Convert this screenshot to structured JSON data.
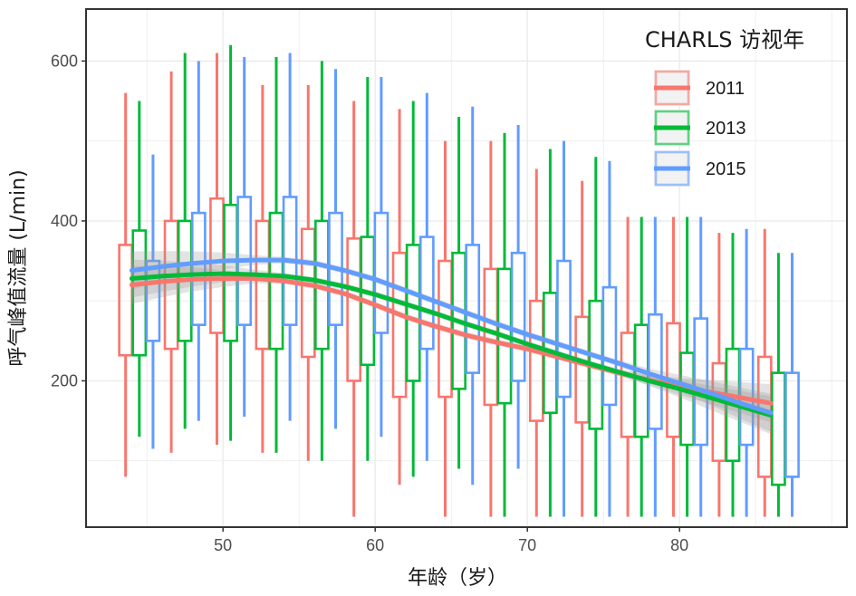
{
  "chart_data": {
    "type": "box",
    "x_ticks": [
      50,
      60,
      70,
      80
    ],
    "y_ticks": [
      200,
      400,
      600
    ],
    "xlim": [
      41,
      91
    ],
    "ylim": [
      17,
      665
    ],
    "xlabel": "年龄（岁）",
    "ylabel": "呼气峰值流量 (L/min)",
    "legend_title": "CHARLS 访视年",
    "legend_position": "top-right",
    "grid": true,
    "age_groups": [
      44.5,
      47.5,
      50.5,
      53.5,
      56.5,
      59.5,
      62.5,
      65.5,
      68.5,
      71.5,
      74.5,
      77.5,
      80.5,
      83.5,
      86.5
    ],
    "series": [
      {
        "name": "2011",
        "color": "#F8766D",
        "boxes": [
          {
            "whisker_low": 80,
            "q1": 232,
            "q3": 370,
            "whisker_high": 560
          },
          {
            "whisker_low": 110,
            "q1": 240,
            "q3": 400,
            "whisker_high": 587
          },
          {
            "whisker_low": 120,
            "q1": 260,
            "q3": 428,
            "whisker_high": 610
          },
          {
            "whisker_low": 110,
            "q1": 240,
            "q3": 400,
            "whisker_high": 570
          },
          {
            "whisker_low": 100,
            "q1": 230,
            "q3": 390,
            "whisker_high": 570
          },
          {
            "whisker_low": 30,
            "q1": 200,
            "q3": 378,
            "whisker_high": 550
          },
          {
            "whisker_low": 70,
            "q1": 180,
            "q3": 360,
            "whisker_high": 540
          },
          {
            "whisker_low": 30,
            "q1": 180,
            "q3": 350,
            "whisker_high": 500
          },
          {
            "whisker_low": 30,
            "q1": 170,
            "q3": 340,
            "whisker_high": 500
          },
          {
            "whisker_low": 30,
            "q1": 150,
            "q3": 300,
            "whisker_high": 465
          },
          {
            "whisker_low": 30,
            "q1": 148,
            "q3": 280,
            "whisker_high": 450
          },
          {
            "whisker_low": 30,
            "q1": 130,
            "q3": 260,
            "whisker_high": 405
          },
          {
            "whisker_low": 30,
            "q1": 130,
            "q3": 272,
            "whisker_high": 405
          },
          {
            "whisker_low": 30,
            "q1": 100,
            "q3": 222,
            "whisker_high": 385
          },
          {
            "whisker_low": 30,
            "q1": 80,
            "q3": 230,
            "whisker_high": 390
          }
        ],
        "trend": [
          {
            "age": 44,
            "pef": 320
          },
          {
            "age": 46,
            "pef": 324
          },
          {
            "age": 48,
            "pef": 327
          },
          {
            "age": 50,
            "pef": 328
          },
          {
            "age": 52,
            "pef": 328
          },
          {
            "age": 54,
            "pef": 325
          },
          {
            "age": 56,
            "pef": 319
          },
          {
            "age": 58,
            "pef": 309
          },
          {
            "age": 60,
            "pef": 295
          },
          {
            "age": 62,
            "pef": 280
          },
          {
            "age": 64,
            "pef": 268
          },
          {
            "age": 66,
            "pef": 257
          },
          {
            "age": 68,
            "pef": 248
          },
          {
            "age": 70,
            "pef": 240
          },
          {
            "age": 72,
            "pef": 230
          },
          {
            "age": 74,
            "pef": 220
          },
          {
            "age": 76,
            "pef": 210
          },
          {
            "age": 78,
            "pef": 201
          },
          {
            "age": 80,
            "pef": 193
          },
          {
            "age": 82,
            "pef": 186
          },
          {
            "age": 84,
            "pef": 179
          },
          {
            "age": 86,
            "pef": 172
          }
        ]
      },
      {
        "name": "2013",
        "color": "#00BA38",
        "boxes": [
          {
            "whisker_low": 130,
            "q1": 232,
            "q3": 388,
            "whisker_high": 550
          },
          {
            "whisker_low": 140,
            "q1": 250,
            "q3": 400,
            "whisker_high": 610
          },
          {
            "whisker_low": 125,
            "q1": 250,
            "q3": 420,
            "whisker_high": 620
          },
          {
            "whisker_low": 110,
            "q1": 240,
            "q3": 410,
            "whisker_high": 605
          },
          {
            "whisker_low": 100,
            "q1": 240,
            "q3": 400,
            "whisker_high": 600
          },
          {
            "whisker_low": 100,
            "q1": 220,
            "q3": 380,
            "whisker_high": 580
          },
          {
            "whisker_low": 80,
            "q1": 200,
            "q3": 370,
            "whisker_high": 550
          },
          {
            "whisker_low": 90,
            "q1": 190,
            "q3": 360,
            "whisker_high": 530
          },
          {
            "whisker_low": 30,
            "q1": 172,
            "q3": 340,
            "whisker_high": 510
          },
          {
            "whisker_low": 30,
            "q1": 160,
            "q3": 310,
            "whisker_high": 490
          },
          {
            "whisker_low": 30,
            "q1": 140,
            "q3": 300,
            "whisker_high": 480
          },
          {
            "whisker_low": 30,
            "q1": 130,
            "q3": 270,
            "whisker_high": 405
          },
          {
            "whisker_low": 30,
            "q1": 120,
            "q3": 235,
            "whisker_high": 405
          },
          {
            "whisker_low": 30,
            "q1": 100,
            "q3": 240,
            "whisker_high": 385
          },
          {
            "whisker_low": 30,
            "q1": 70,
            "q3": 210,
            "whisker_high": 360
          }
        ],
        "trend": [
          {
            "age": 44,
            "pef": 328
          },
          {
            "age": 46,
            "pef": 331
          },
          {
            "age": 48,
            "pef": 333
          },
          {
            "age": 50,
            "pef": 334
          },
          {
            "age": 52,
            "pef": 333
          },
          {
            "age": 54,
            "pef": 331
          },
          {
            "age": 56,
            "pef": 326
          },
          {
            "age": 58,
            "pef": 318
          },
          {
            "age": 60,
            "pef": 308
          },
          {
            "age": 62,
            "pef": 296
          },
          {
            "age": 64,
            "pef": 284
          },
          {
            "age": 66,
            "pef": 271
          },
          {
            "age": 68,
            "pef": 259
          },
          {
            "age": 70,
            "pef": 246
          },
          {
            "age": 72,
            "pef": 234
          },
          {
            "age": 74,
            "pef": 222
          },
          {
            "age": 76,
            "pef": 211
          },
          {
            "age": 78,
            "pef": 200
          },
          {
            "age": 80,
            "pef": 190
          },
          {
            "age": 82,
            "pef": 179
          },
          {
            "age": 84,
            "pef": 168
          },
          {
            "age": 86,
            "pef": 157
          }
        ]
      },
      {
        "name": "2015",
        "color": "#619CFF",
        "boxes": [
          {
            "whisker_low": 115,
            "q1": 250,
            "q3": 350,
            "whisker_high": 483
          },
          {
            "whisker_low": 150,
            "q1": 270,
            "q3": 410,
            "whisker_high": 600
          },
          {
            "whisker_low": 155,
            "q1": 270,
            "q3": 430,
            "whisker_high": 605
          },
          {
            "whisker_low": 150,
            "q1": 270,
            "q3": 430,
            "whisker_high": 610
          },
          {
            "whisker_low": 140,
            "q1": 270,
            "q3": 410,
            "whisker_high": 590
          },
          {
            "whisker_low": 130,
            "q1": 260,
            "q3": 410,
            "whisker_high": 580
          },
          {
            "whisker_low": 100,
            "q1": 240,
            "q3": 380,
            "whisker_high": 560
          },
          {
            "whisker_low": 70,
            "q1": 210,
            "q3": 370,
            "whisker_high": 543
          },
          {
            "whisker_low": 90,
            "q1": 200,
            "q3": 360,
            "whisker_high": 520
          },
          {
            "whisker_low": 30,
            "q1": 180,
            "q3": 350,
            "whisker_high": 500
          },
          {
            "whisker_low": 30,
            "q1": 170,
            "q3": 317,
            "whisker_high": 475
          },
          {
            "whisker_low": 30,
            "q1": 140,
            "q3": 283,
            "whisker_high": 405
          },
          {
            "whisker_low": 30,
            "q1": 120,
            "q3": 278,
            "whisker_high": 405
          },
          {
            "whisker_low": 30,
            "q1": 120,
            "q3": 240,
            "whisker_high": 390
          },
          {
            "whisker_low": 30,
            "q1": 80,
            "q3": 210,
            "whisker_high": 360
          }
        ],
        "trend": [
          {
            "age": 44,
            "pef": 338
          },
          {
            "age": 46,
            "pef": 343
          },
          {
            "age": 48,
            "pef": 347
          },
          {
            "age": 50,
            "pef": 350
          },
          {
            "age": 52,
            "pef": 351
          },
          {
            "age": 54,
            "pef": 351
          },
          {
            "age": 56,
            "pef": 347
          },
          {
            "age": 58,
            "pef": 338
          },
          {
            "age": 60,
            "pef": 327
          },
          {
            "age": 62,
            "pef": 313
          },
          {
            "age": 64,
            "pef": 299
          },
          {
            "age": 66,
            "pef": 285
          },
          {
            "age": 68,
            "pef": 271
          },
          {
            "age": 70,
            "pef": 258
          },
          {
            "age": 72,
            "pef": 246
          },
          {
            "age": 74,
            "pef": 234
          },
          {
            "age": 76,
            "pef": 222
          },
          {
            "age": 78,
            "pef": 209
          },
          {
            "age": 80,
            "pef": 197
          },
          {
            "age": 82,
            "pef": 185
          },
          {
            "age": 84,
            "pef": 172
          },
          {
            "age": 86,
            "pef": 160
          }
        ]
      }
    ]
  }
}
